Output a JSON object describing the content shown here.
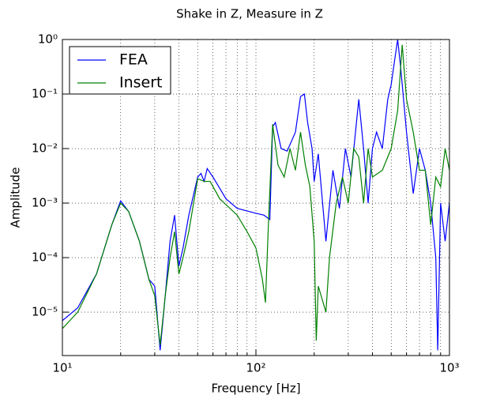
{
  "chart_data": {
    "type": "line",
    "title": "Shake in Z, Measure in Z",
    "x_label": "Frequency [Hz]",
    "y_label": "Amplitude",
    "log_x": true,
    "log_y": true,
    "grid": true,
    "legend": "upper left",
    "xlim": [
      10,
      1000
    ],
    "xticks": [
      {
        "value": 10,
        "label": "10¹"
      },
      {
        "value": 100,
        "label": "10²"
      },
      {
        "value": 1000,
        "label": "10³"
      }
    ],
    "xminorticks": [
      20,
      30,
      40,
      50,
      60,
      70,
      80,
      90,
      200,
      300,
      400,
      500,
      600,
      700,
      800,
      900
    ],
    "ylim": [
      1.6e-06,
      1
    ],
    "yticks": [
      {
        "value": 1e-05,
        "label": "10⁻⁵"
      },
      {
        "value": 0.0001,
        "label": "10⁻⁴"
      },
      {
        "value": 0.001,
        "label": "10⁻³"
      },
      {
        "value": 0.01,
        "label": "10⁻²"
      },
      {
        "value": 0.1,
        "label": "10⁻¹"
      },
      {
        "value": 1,
        "label": "10⁰"
      }
    ],
    "series": [
      {
        "name": "FEA",
        "color": "#0000ff",
        "x": [
          10,
          12,
          15,
          18,
          20,
          22,
          25,
          28,
          30,
          32,
          34,
          36,
          38,
          40,
          42,
          45,
          50,
          52,
          54,
          56,
          60,
          70,
          80,
          100,
          110,
          118,
          122,
          126,
          135,
          145,
          160,
          170,
          178,
          185,
          195,
          200,
          210,
          230,
          250,
          270,
          290,
          310,
          340,
          360,
          380,
          400,
          420,
          450,
          480,
          500,
          520,
          540,
          560,
          600,
          650,
          700,
          750,
          800,
          850,
          870,
          900,
          950,
          1000
        ],
        "values": [
          7e-06,
          1.2e-05,
          5e-05,
          0.0004,
          0.0011,
          0.0007,
          0.0002,
          4e-05,
          3e-05,
          2e-06,
          2e-05,
          0.0002,
          0.0006,
          7e-05,
          0.00015,
          0.0006,
          0.003,
          0.0035,
          0.0025,
          0.0043,
          0.003,
          0.0012,
          0.0008,
          0.00065,
          0.0006,
          0.0005,
          0.025,
          0.03,
          0.01,
          0.009,
          0.02,
          0.09,
          0.1,
          0.03,
          0.01,
          0.0025,
          0.008,
          0.0002,
          0.004,
          0.0008,
          0.01,
          0.003,
          0.08,
          0.01,
          0.001,
          0.01,
          0.02,
          0.01,
          0.08,
          0.15,
          0.4,
          1,
          0.3,
          0.02,
          0.0015,
          0.01,
          0.004,
          0.001,
          0.0001,
          2e-06,
          0.001,
          0.0002,
          0.001
        ]
      },
      {
        "name": "Insert",
        "color": "#008000",
        "x": [
          10,
          12,
          15,
          18,
          20,
          22,
          25,
          28,
          30,
          32,
          34,
          36,
          38,
          40,
          42,
          45,
          50,
          54,
          58,
          65,
          80,
          90,
          100,
          108,
          112,
          116,
          122,
          130,
          140,
          150,
          160,
          170,
          180,
          190,
          200,
          205,
          210,
          230,
          240,
          260,
          280,
          300,
          320,
          340,
          360,
          380,
          400,
          450,
          500,
          540,
          570,
          600,
          650,
          700,
          750,
          800,
          850,
          900,
          950,
          1000
        ],
        "values": [
          5e-06,
          1e-05,
          5e-05,
          0.0004,
          0.001,
          0.0007,
          0.0002,
          4e-05,
          2e-05,
          2.5e-06,
          2e-05,
          0.0001,
          0.0003,
          5e-05,
          0.0001,
          0.0003,
          0.0028,
          0.0025,
          0.0025,
          0.0012,
          0.0006,
          0.0003,
          0.00015,
          4e-05,
          1.5e-05,
          0.0004,
          0.028,
          0.005,
          0.003,
          0.01,
          0.004,
          0.02,
          0.005,
          0.002,
          0.0002,
          3e-06,
          3e-05,
          1e-05,
          0.0001,
          0.001,
          0.003,
          0.001,
          0.01,
          0.007,
          0.001,
          0.01,
          0.003,
          0.004,
          0.01,
          0.05,
          0.8,
          0.08,
          0.02,
          0.004,
          0.004,
          0.0004,
          0.003,
          0.002,
          0.01,
          0.004
        ]
      }
    ]
  }
}
